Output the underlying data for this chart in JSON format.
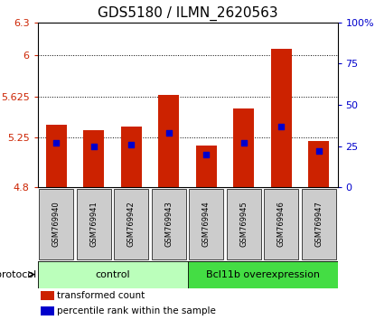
{
  "title": "GDS5180 / ILMN_2620563",
  "samples": [
    "GSM769940",
    "GSM769941",
    "GSM769942",
    "GSM769943",
    "GSM769944",
    "GSM769945",
    "GSM769946",
    "GSM769947"
  ],
  "transformed_count": [
    5.37,
    5.32,
    5.35,
    5.64,
    5.18,
    5.52,
    6.06,
    5.22
  ],
  "percentile_rank": [
    27,
    25,
    26,
    33,
    20,
    27,
    37,
    22
  ],
  "ymin": 4.8,
  "ymax": 6.3,
  "yticks": [
    4.8,
    5.25,
    5.625,
    6.0,
    6.3
  ],
  "ytick_labels": [
    "4.8",
    "5.25",
    "5.625",
    "6",
    "6.3"
  ],
  "y2min": 0,
  "y2max": 100,
  "y2ticks": [
    0,
    25,
    50,
    75,
    100
  ],
  "y2tick_labels": [
    "0",
    "25",
    "50",
    "75",
    "100%"
  ],
  "bar_color": "#cc2200",
  "percentile_color": "#0000cc",
  "groups": [
    {
      "label": "control",
      "start": 0,
      "end": 4,
      "color": "#bbffbb"
    },
    {
      "label": "Bcl11b overexpression",
      "start": 4,
      "end": 8,
      "color": "#44dd44"
    }
  ],
  "protocol_label": "protocol",
  "legend_items": [
    {
      "color": "#cc2200",
      "label": "transformed count"
    },
    {
      "color": "#0000cc",
      "label": "percentile rank within the sample"
    }
  ],
  "bar_bottom": 4.8,
  "dotted_gridlines": [
    5.25,
    5.625,
    6.0
  ],
  "bar_width": 0.55,
  "left_tick_color": "#cc2200",
  "right_tick_color": "#0000cc",
  "title_fontsize": 11,
  "tick_fontsize": 8,
  "label_fontsize": 8,
  "sample_fontsize": 6
}
